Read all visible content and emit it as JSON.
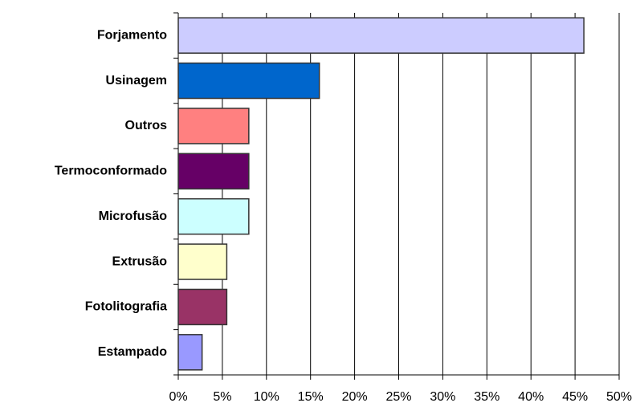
{
  "chart_data": {
    "type": "barh",
    "categories": [
      "Forjamento",
      "Usinagem",
      "Outros",
      "Termoconformado",
      "Microfusão",
      "Extrusão",
      "Fotolitografia",
      "Estampado"
    ],
    "values": [
      46,
      16,
      8,
      8,
      8,
      5.5,
      5.5,
      2.7
    ],
    "colors": [
      "#ccccff",
      "#0066cc",
      "#ff8080",
      "#660066",
      "#ccffff",
      "#ffffcc",
      "#993366",
      "#9999ff"
    ],
    "xlim": [
      0,
      50
    ],
    "xticks": [
      {
        "value": 0,
        "label": "0%"
      },
      {
        "value": 5,
        "label": "5%"
      },
      {
        "value": 10,
        "label": "10%"
      },
      {
        "value": 15,
        "label": "15%"
      },
      {
        "value": 20,
        "label": "20%"
      },
      {
        "value": 25,
        "label": "25%"
      },
      {
        "value": 30,
        "label": "30%"
      },
      {
        "value": 35,
        "label": "35%"
      },
      {
        "value": 40,
        "label": "40%"
      },
      {
        "value": 45,
        "label": "45%"
      },
      {
        "value": 50,
        "label": "50%"
      }
    ],
    "grid": true
  }
}
